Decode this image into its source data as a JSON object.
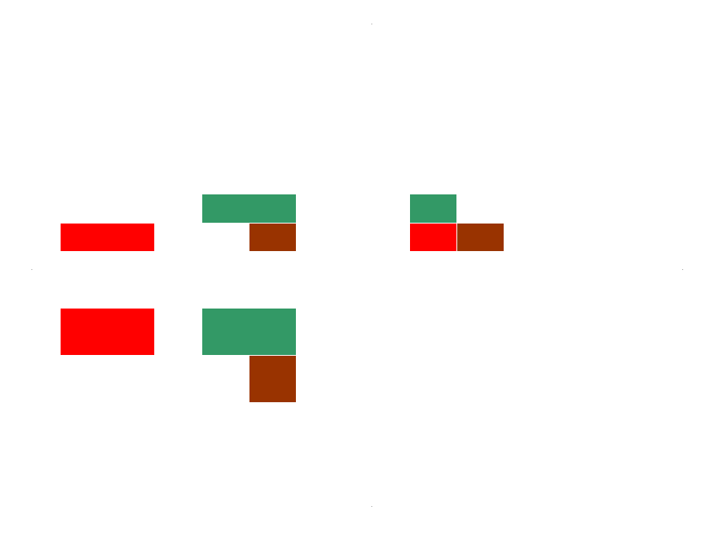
{
  "colors": {
    "red": "#ff0000",
    "green": "#339966",
    "brown": "#993300",
    "background": "#ffffff"
  },
  "blocks": [
    {
      "id": "b1",
      "color": "red"
    },
    {
      "id": "b2",
      "color": "green"
    },
    {
      "id": "b3",
      "color": "brown"
    },
    {
      "id": "b4",
      "color": "green"
    },
    {
      "id": "b5",
      "color": "red"
    },
    {
      "id": "b6",
      "color": "brown"
    },
    {
      "id": "b7",
      "color": "red"
    },
    {
      "id": "b8",
      "color": "green"
    },
    {
      "id": "b9",
      "color": "brown"
    }
  ]
}
